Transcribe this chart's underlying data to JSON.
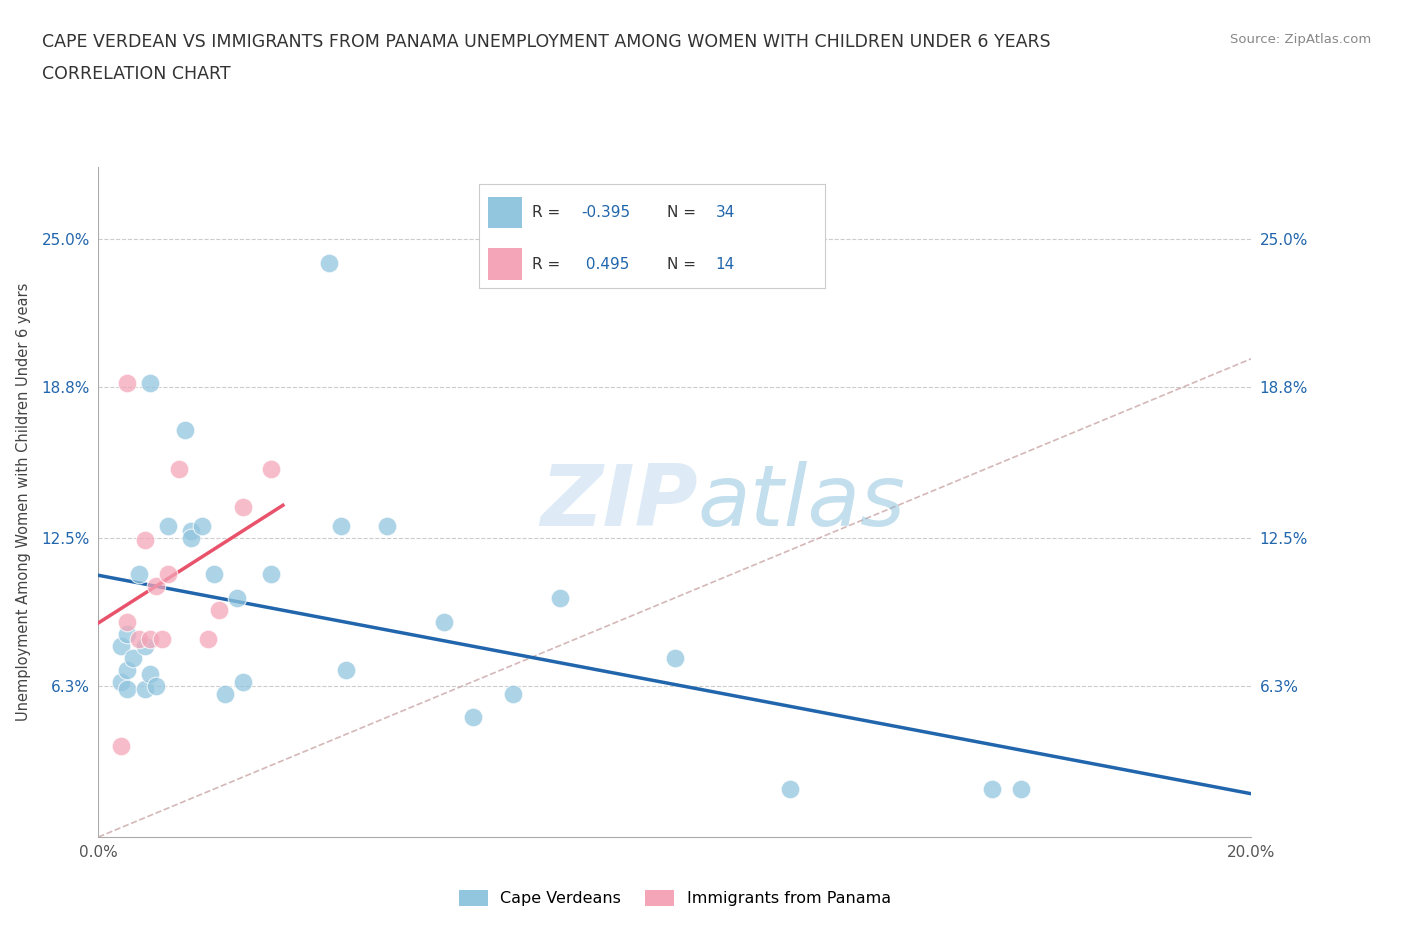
{
  "title_line1": "CAPE VERDEAN VS IMMIGRANTS FROM PANAMA UNEMPLOYMENT AMONG WOMEN WITH CHILDREN UNDER 6 YEARS",
  "title_line2": "CORRELATION CHART",
  "source_text": "Source: ZipAtlas.com",
  "ylabel": "Unemployment Among Women with Children Under 6 years",
  "xlim": [
    0.0,
    0.2
  ],
  "ylim": [
    0.0,
    0.28
  ],
  "ytick_vals": [
    0.0,
    0.063,
    0.125,
    0.188,
    0.25
  ],
  "ytick_labels": [
    "",
    "6.3%",
    "12.5%",
    "18.8%",
    "25.0%"
  ],
  "xtick_vals": [
    0.0,
    0.025,
    0.05,
    0.075,
    0.1,
    0.125,
    0.15,
    0.175,
    0.2
  ],
  "xtick_labels": [
    "0.0%",
    "",
    "",
    "",
    "",
    "",
    "",
    "",
    "20.0%"
  ],
  "watermark_zip": "ZIP",
  "watermark_atlas": "atlas",
  "blue_color": "#92c5de",
  "pink_color": "#f4a6b8",
  "blue_line_color": "#2166ac",
  "pink_line_color": "#e8526a",
  "diagonal_color": "#d0b0b0",
  "background_color": "#ffffff",
  "grid_color": "#cccccc",
  "cape_verdean_x": [
    0.004,
    0.004,
    0.005,
    0.005,
    0.005,
    0.006,
    0.007,
    0.008,
    0.008,
    0.009,
    0.009,
    0.01,
    0.012,
    0.015,
    0.016,
    0.016,
    0.018,
    0.02,
    0.022,
    0.024,
    0.025,
    0.03,
    0.04,
    0.042,
    0.043,
    0.05,
    0.06,
    0.065,
    0.072,
    0.08,
    0.1,
    0.12,
    0.155,
    0.16
  ],
  "cape_verdean_y": [
    0.08,
    0.065,
    0.085,
    0.07,
    0.062,
    0.075,
    0.11,
    0.08,
    0.062,
    0.19,
    0.068,
    0.063,
    0.13,
    0.17,
    0.128,
    0.125,
    0.13,
    0.11,
    0.06,
    0.1,
    0.065,
    0.11,
    0.24,
    0.13,
    0.07,
    0.13,
    0.09,
    0.05,
    0.06,
    0.1,
    0.075,
    0.02,
    0.02,
    0.02
  ],
  "panama_x": [
    0.004,
    0.005,
    0.005,
    0.007,
    0.008,
    0.009,
    0.01,
    0.011,
    0.012,
    0.014,
    0.019,
    0.021,
    0.025,
    0.03
  ],
  "panama_y": [
    0.038,
    0.09,
    0.19,
    0.083,
    0.124,
    0.083,
    0.105,
    0.083,
    0.11,
    0.154,
    0.083,
    0.095,
    0.138,
    0.154
  ]
}
